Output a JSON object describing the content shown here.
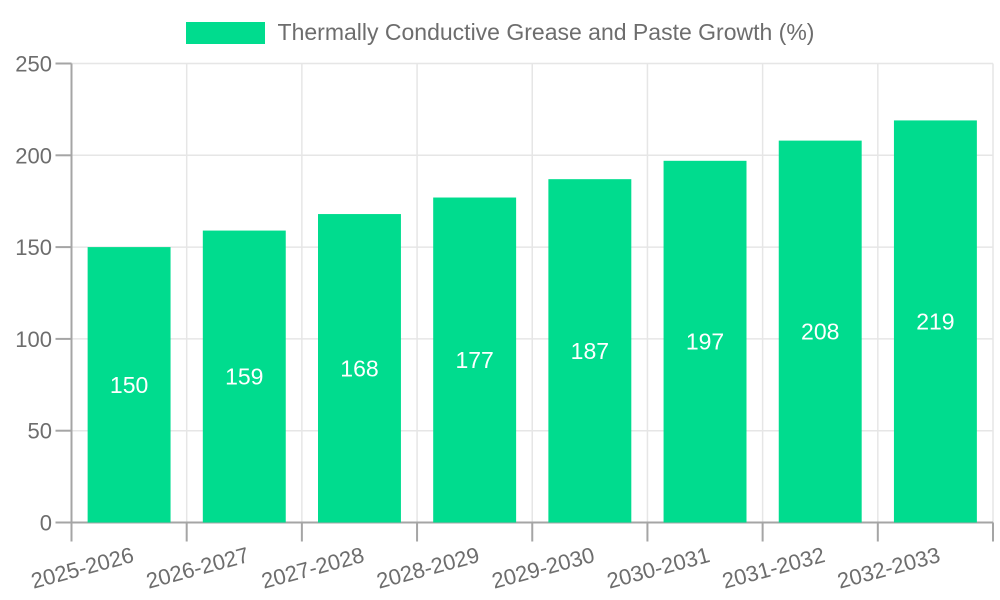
{
  "legend": {
    "label": "Thermally Conductive Grease and Paste Growth (%)"
  },
  "chart_data": {
    "type": "bar",
    "title": "Thermally Conductive Grease and Paste Growth (%)",
    "categories": [
      "2025-2026",
      "2026-2027",
      "2027-2028",
      "2028-2029",
      "2029-2030",
      "2030-2031",
      "2031-2032",
      "2032-2033"
    ],
    "series": [
      {
        "name": "Thermally Conductive Grease and Paste Growth (%)",
        "values": [
          150,
          159,
          168,
          177,
          187,
          197,
          208,
          219
        ]
      }
    ],
    "xlabel": "",
    "ylabel": "",
    "ylim": [
      0,
      250
    ],
    "yticks": [
      0,
      50,
      100,
      150,
      200,
      250
    ],
    "grid": true,
    "legend_position": "top",
    "value_label_position": "center",
    "x_label_rotation_deg": -15,
    "colors": {
      "bar": "#00dc8e",
      "grid": "#e6e6e6",
      "axis": "#a5a5a5",
      "text": "#6d6d6d",
      "value_label": "#ffffff",
      "background": "#ffffff"
    }
  }
}
